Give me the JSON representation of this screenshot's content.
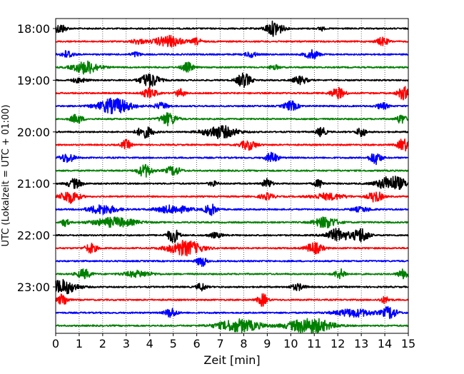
{
  "chart_data": {
    "type": "line",
    "title": "",
    "xlabel": "Zeit  [min]",
    "ylabel": "UTC (Lokalzeit = UTC + 01:00)",
    "xlim": [
      0,
      15
    ],
    "x_ticks": [
      "0",
      "1",
      "2",
      "3",
      "4",
      "5",
      "6",
      "7",
      "8",
      "9",
      "10",
      "11",
      "12",
      "13",
      "14",
      "15"
    ],
    "y_ticks": [
      "18:00",
      "19:00",
      "20:00",
      "21:00",
      "22:00",
      "23:00"
    ],
    "grid": "vertical dotted",
    "colors": [
      "#000000",
      "#ff0000",
      "#0000ff",
      "#008000"
    ],
    "traces": [
      {
        "start": "18:00",
        "color": "#000000",
        "events": [
          [
            0.2,
            0.6,
            0.25
          ],
          [
            9.3,
            1.0,
            0.35
          ],
          [
            11.3,
            0.3,
            0.12
          ]
        ]
      },
      {
        "start": "18:15",
        "color": "#ff0000",
        "events": [
          [
            3.5,
            0.3,
            0.3
          ],
          [
            4.8,
            0.7,
            0.6
          ],
          [
            6.0,
            0.4,
            0.2
          ],
          [
            13.9,
            0.5,
            0.25
          ]
        ]
      },
      {
        "start": "18:30",
        "color": "#0000ff",
        "events": [
          [
            0.5,
            0.5,
            0.25
          ],
          [
            3.4,
            0.3,
            0.2
          ],
          [
            8.3,
            0.35,
            0.25
          ],
          [
            10.9,
            0.55,
            0.3
          ]
        ]
      },
      {
        "start": "18:45",
        "color": "#008000",
        "events": [
          [
            1.3,
            0.8,
            0.55
          ],
          [
            5.6,
            0.6,
            0.25
          ],
          [
            9.3,
            0.3,
            0.2
          ]
        ]
      },
      {
        "start": "19:00",
        "color": "#000000",
        "events": [
          [
            1.0,
            0.3,
            0.3
          ],
          [
            4.0,
            0.9,
            0.4
          ],
          [
            8.0,
            0.9,
            0.3
          ],
          [
            10.4,
            0.5,
            0.3
          ]
        ]
      },
      {
        "start": "19:15",
        "color": "#ff0000",
        "events": [
          [
            4.0,
            0.6,
            0.3
          ],
          [
            5.3,
            0.5,
            0.2
          ],
          [
            12.0,
            0.7,
            0.3
          ],
          [
            14.8,
            0.8,
            0.25
          ]
        ]
      },
      {
        "start": "19:30",
        "color": "#0000ff",
        "events": [
          [
            2.5,
            1.0,
            0.7
          ],
          [
            4.5,
            0.4,
            0.3
          ],
          [
            10.0,
            0.6,
            0.3
          ],
          [
            13.9,
            0.4,
            0.25
          ]
        ]
      },
      {
        "start": "19:45",
        "color": "#008000",
        "events": [
          [
            0.9,
            0.6,
            0.25
          ],
          [
            4.8,
            0.8,
            0.35
          ],
          [
            14.7,
            0.6,
            0.2
          ]
        ]
      },
      {
        "start": "20:00",
        "color": "#000000",
        "events": [
          [
            3.8,
            0.7,
            0.35
          ],
          [
            7.0,
            0.8,
            0.7
          ],
          [
            11.3,
            0.6,
            0.2
          ],
          [
            13.0,
            0.6,
            0.2
          ]
        ]
      },
      {
        "start": "20:15",
        "color": "#ff0000",
        "events": [
          [
            3.0,
            0.6,
            0.2
          ],
          [
            8.2,
            0.6,
            0.35
          ],
          [
            14.8,
            0.8,
            0.25
          ]
        ]
      },
      {
        "start": "20:30",
        "color": "#0000ff",
        "events": [
          [
            0.5,
            0.6,
            0.3
          ],
          [
            9.2,
            0.7,
            0.25
          ],
          [
            13.6,
            0.8,
            0.25
          ]
        ]
      },
      {
        "start": "20:45",
        "color": "#008000",
        "events": [
          [
            3.8,
            0.8,
            0.3
          ],
          [
            5.0,
            0.6,
            0.3
          ]
        ]
      },
      {
        "start": "21:00",
        "color": "#000000",
        "events": [
          [
            0.8,
            0.6,
            0.3
          ],
          [
            6.7,
            0.3,
            0.2
          ],
          [
            9.0,
            0.6,
            0.2
          ],
          [
            11.2,
            0.5,
            0.2
          ],
          [
            14.3,
            1.0,
            0.6
          ]
        ]
      },
      {
        "start": "21:15",
        "color": "#ff0000",
        "events": [
          [
            0.6,
            0.8,
            0.4
          ],
          [
            9.0,
            0.4,
            0.3
          ],
          [
            11.6,
            0.4,
            0.7
          ],
          [
            13.6,
            0.7,
            0.3
          ]
        ]
      },
      {
        "start": "21:30",
        "color": "#0000ff",
        "events": [
          [
            2.0,
            0.6,
            0.6
          ],
          [
            5.0,
            0.5,
            0.7
          ],
          [
            6.6,
            0.7,
            0.25
          ],
          [
            13.0,
            0.3,
            0.4
          ]
        ]
      },
      {
        "start": "21:45",
        "color": "#008000",
        "events": [
          [
            0.4,
            0.5,
            0.15
          ],
          [
            2.5,
            0.6,
            0.9
          ],
          [
            11.5,
            0.7,
            0.5
          ]
        ]
      },
      {
        "start": "22:00",
        "color": "#000000",
        "events": [
          [
            5.0,
            0.9,
            0.25
          ],
          [
            6.8,
            0.3,
            0.3
          ],
          [
            12.0,
            0.8,
            0.5
          ],
          [
            13.0,
            1.0,
            0.3
          ]
        ]
      },
      {
        "start": "22:15",
        "color": "#ff0000",
        "events": [
          [
            1.5,
            0.6,
            0.25
          ],
          [
            5.5,
            1.0,
            0.7
          ],
          [
            11.0,
            0.7,
            0.35
          ]
        ]
      },
      {
        "start": "22:30",
        "color": "#0000ff",
        "events": [
          [
            6.2,
            0.7,
            0.2
          ]
        ]
      },
      {
        "start": "22:45",
        "color": "#008000",
        "events": [
          [
            1.2,
            0.6,
            0.3
          ],
          [
            3.5,
            0.4,
            0.6
          ],
          [
            12.1,
            0.6,
            0.25
          ],
          [
            14.8,
            0.6,
            0.25
          ]
        ]
      },
      {
        "start": "23:00",
        "color": "#000000",
        "events": [
          [
            0.3,
            0.9,
            0.6
          ],
          [
            6.2,
            0.5,
            0.2
          ],
          [
            10.3,
            0.4,
            0.3
          ]
        ]
      },
      {
        "start": "23:15",
        "color": "#ff0000",
        "events": [
          [
            0.3,
            0.8,
            0.2
          ],
          [
            8.8,
            0.8,
            0.2
          ],
          [
            14.0,
            0.4,
            0.2
          ]
        ]
      },
      {
        "start": "23:30",
        "color": "#0000ff",
        "events": [
          [
            4.9,
            0.6,
            0.25
          ],
          [
            12.7,
            0.5,
            0.8
          ],
          [
            14.2,
            0.8,
            0.3
          ]
        ]
      },
      {
        "start": "23:45",
        "color": "#008000",
        "events": [
          [
            7.8,
            0.8,
            0.9
          ],
          [
            10.8,
            1.0,
            0.9
          ]
        ]
      }
    ]
  }
}
